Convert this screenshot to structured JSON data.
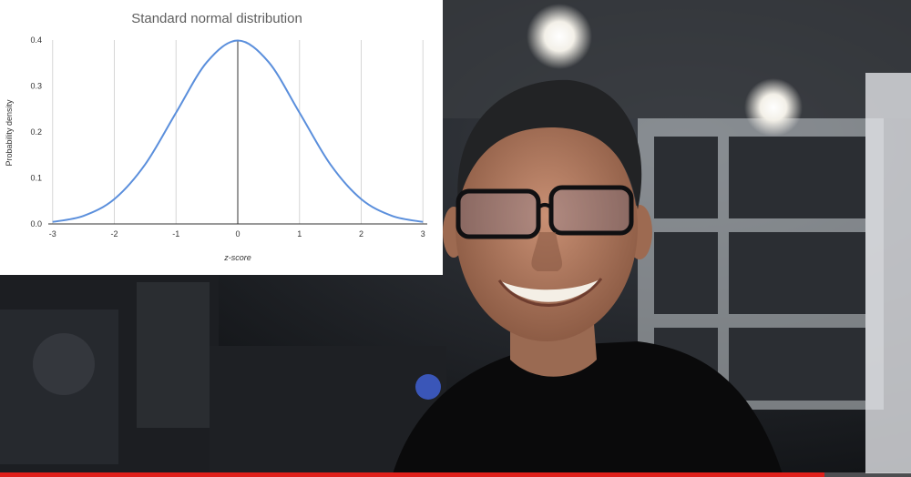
{
  "video": {
    "progress_fraction": 0.905,
    "progress_color": "#e0201b"
  },
  "chart_data": {
    "type": "line",
    "title": "Standard normal distribution",
    "xlabel": "z-score",
    "ylabel": "Probability density",
    "xlim": [
      -3.07,
      3.07
    ],
    "ylim": [
      0,
      0.4
    ],
    "x_ticks": [
      "-3",
      "-2",
      "-1",
      "0",
      "1",
      "2",
      "3"
    ],
    "y_ticks": [
      "0.0",
      "0.1",
      "0.2",
      "0.3",
      "0.4"
    ],
    "grid": "vertical",
    "line_color": "#5b8fdc",
    "series": [
      {
        "x": [
          -3.0,
          -2.5,
          -2.0,
          -1.5,
          -1.0,
          -0.5,
          0.0,
          0.5,
          1.0,
          1.5,
          2.0,
          2.5,
          3.0
        ],
        "y": [
          0.0044,
          0.0175,
          0.054,
          0.1295,
          0.242,
          0.3521,
          0.3989,
          0.3521,
          0.242,
          0.1295,
          0.054,
          0.0175,
          0.0044
        ]
      }
    ]
  }
}
